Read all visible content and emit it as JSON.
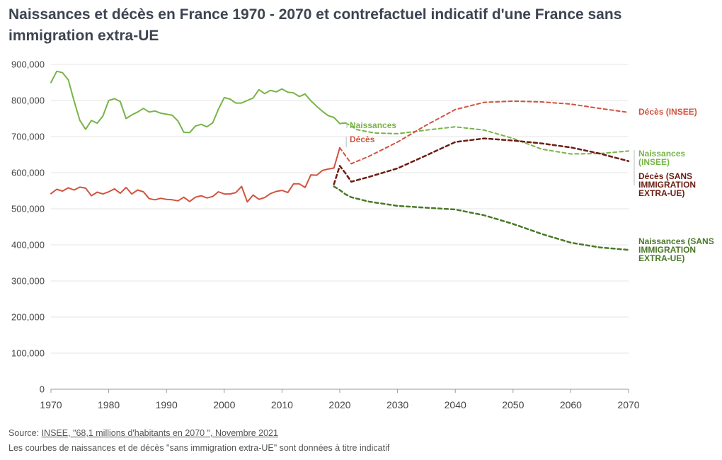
{
  "title": "Naissances et décès en France 1970 - 2070 et contrefactuel indicatif d'une France sans immigration extra-UE",
  "source_prefix": "Source: ",
  "source_link": "INSEE, \"68,1 millions d'habitants en 2070 \", Novembre 2021",
  "note": "Les courbes de naissances et de décès \"sans immigration extra-UE\" sont données à titre indicatif",
  "colors": {
    "naissances": "#77b448",
    "deces": "#d1533f",
    "naissances_insee": "#77b448",
    "deces_insee": "#d1533f",
    "deces_sans": "#6b1d12",
    "naissances_sans": "#4a7828"
  },
  "chart_data": {
    "type": "line",
    "title": "Naissances et décès en France 1970 - 2070 et contrefactuel indicatif d'une France sans immigration extra-UE",
    "xlabel": "",
    "ylabel": "",
    "xlim": [
      1970,
      2070
    ],
    "ylim": [
      0,
      900000
    ],
    "xticks": [
      1970,
      1980,
      1990,
      2000,
      2010,
      2020,
      2030,
      2040,
      2050,
      2060,
      2070
    ],
    "yticks": [
      0,
      100000,
      200000,
      300000,
      400000,
      500000,
      600000,
      700000,
      800000,
      900000
    ],
    "ytick_labels": [
      "0",
      "100,000",
      "200,000",
      "300,000",
      "400,000",
      "500,000",
      "600,000",
      "700,000",
      "800,000",
      "900,000"
    ],
    "grid": "horizontal",
    "series": [
      {
        "key": "naissances",
        "name": "Naissances",
        "style": "solid",
        "x": [
          1970,
          1971,
          1972,
          1973,
          1974,
          1975,
          1976,
          1977,
          1978,
          1979,
          1980,
          1981,
          1982,
          1983,
          1984,
          1985,
          1986,
          1987,
          1988,
          1989,
          1990,
          1991,
          1992,
          1993,
          1994,
          1995,
          1996,
          1997,
          1998,
          1999,
          2000,
          2001,
          2002,
          2003,
          2004,
          2005,
          2006,
          2007,
          2008,
          2009,
          2010,
          2011,
          2012,
          2013,
          2014,
          2015,
          2016,
          2017,
          2018,
          2019,
          2020,
          2021
        ],
        "y": [
          850000,
          881000,
          877000,
          857000,
          799000,
          745000,
          720000,
          745000,
          737000,
          757000,
          800000,
          805000,
          797000,
          750000,
          760000,
          768000,
          778000,
          768000,
          771000,
          765000,
          762000,
          759000,
          743000,
          712000,
          711000,
          729000,
          734000,
          727000,
          738000,
          776000,
          808000,
          804000,
          793000,
          793000,
          800000,
          807000,
          830000,
          819000,
          828000,
          824000,
          832000,
          823000,
          821000,
          811000,
          818000,
          799000,
          784000,
          770000,
          758000,
          753000,
          736000,
          738000
        ]
      },
      {
        "key": "deces",
        "name": "Décès",
        "style": "solid",
        "x": [
          1970,
          1971,
          1972,
          1973,
          1974,
          1975,
          1976,
          1977,
          1978,
          1979,
          1980,
          1981,
          1982,
          1983,
          1984,
          1985,
          1986,
          1987,
          1988,
          1989,
          1990,
          1991,
          1992,
          1993,
          1994,
          1995,
          1996,
          1997,
          1998,
          1999,
          2000,
          2001,
          2002,
          2003,
          2004,
          2005,
          2006,
          2007,
          2008,
          2009,
          2010,
          2011,
          2012,
          2013,
          2014,
          2015,
          2016,
          2017,
          2018,
          2019,
          2020
        ],
        "y": [
          542000,
          554000,
          549000,
          558000,
          552000,
          560000,
          557000,
          536000,
          546000,
          541000,
          547000,
          555000,
          543000,
          559000,
          541000,
          552000,
          547000,
          528000,
          525000,
          529000,
          526000,
          525000,
          522000,
          532000,
          520000,
          532000,
          536000,
          530000,
          534000,
          547000,
          541000,
          541000,
          545000,
          562000,
          519000,
          538000,
          526000,
          531000,
          542000,
          548000,
          551000,
          545000,
          569000,
          569000,
          559000,
          594000,
          593000,
          606000,
          610000,
          613000,
          669000
        ]
      },
      {
        "key": "naissances_insee",
        "name": "Naissances (INSEE)",
        "style": "dashed",
        "x": [
          2021,
          2023,
          2026,
          2030,
          2035,
          2040,
          2045,
          2050,
          2055,
          2060,
          2065,
          2070
        ],
        "y": [
          738000,
          719000,
          710000,
          708000,
          718000,
          727000,
          718000,
          695000,
          665000,
          652000,
          653000,
          660000
        ]
      },
      {
        "key": "deces_insee",
        "name": "Décès (INSEE)",
        "style": "dashed",
        "x": [
          2020,
          2022,
          2025,
          2030,
          2035,
          2040,
          2045,
          2050,
          2055,
          2060,
          2065,
          2070
        ],
        "y": [
          669000,
          625000,
          645000,
          685000,
          732000,
          775000,
          795000,
          798000,
          796000,
          790000,
          778000,
          767000
        ],
        "points_label_anchor": 2021
      },
      {
        "key": "deces_sans",
        "name": "Décès (SANS IMMIGRATION EXTRA-UE)",
        "style": "dashed",
        "x": [
          2019,
          2020,
          2021,
          2022,
          2025,
          2030,
          2035,
          2040,
          2045,
          2050,
          2055,
          2060,
          2065,
          2070
        ],
        "y": [
          568000,
          619000,
          598000,
          575000,
          588000,
          612000,
          648000,
          685000,
          695000,
          689000,
          681000,
          670000,
          653000,
          632000
        ]
      },
      {
        "key": "naissances_sans",
        "name": "Naissances (SANS IMMIGRATION EXTRA-UE)",
        "style": "dashed",
        "x": [
          2019,
          2020,
          2021,
          2022,
          2025,
          2030,
          2035,
          2040,
          2045,
          2050,
          2055,
          2060,
          2065,
          2070
        ],
        "y": [
          562000,
          552000,
          540000,
          532000,
          520000,
          508000,
          503000,
          498000,
          482000,
          458000,
          430000,
          406000,
          393000,
          386000
        ]
      }
    ],
    "labels": [
      {
        "key": "naissances",
        "lines": [
          "Naissances"
        ],
        "ref_year": 2021,
        "ref_value": 738000
      },
      {
        "key": "deces",
        "lines": [
          "Décès"
        ],
        "ref_year": 2021,
        "ref_value": 676000
      },
      {
        "key": "deces_insee",
        "lines": [
          "Décès (INSEE)"
        ]
      },
      {
        "key": "naissances_insee",
        "lines": [
          "Naissances",
          "(INSEE)"
        ]
      },
      {
        "key": "deces_sans",
        "lines": [
          "Décès (SANS",
          "IMMIGRATION",
          "EXTRA-UE)"
        ]
      },
      {
        "key": "naissances_sans",
        "lines": [
          "Naissances (SANS",
          "IMMIGRATION",
          "EXTRA-UE)"
        ]
      }
    ]
  }
}
